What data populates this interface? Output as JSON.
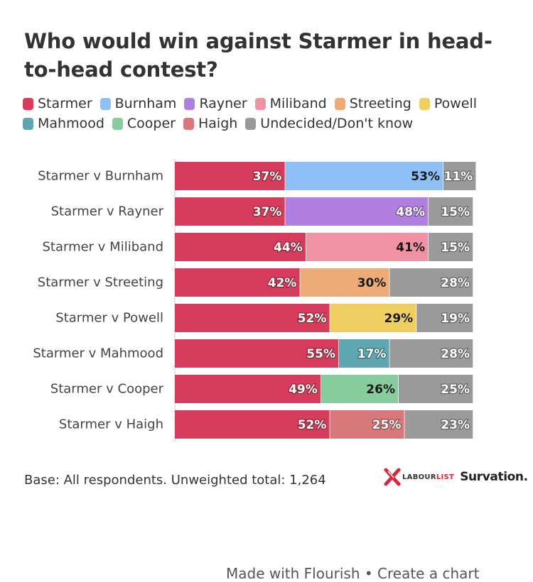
{
  "header": {
    "title": "Who would win against Starmer in head-to-head contest?"
  },
  "legend": [
    {
      "label": "Starmer",
      "color": "#d63c5b"
    },
    {
      "label": "Burnham",
      "color": "#8ec0f7"
    },
    {
      "label": "Rayner",
      "color": "#b07fe0"
    },
    {
      "label": "Miliband",
      "color": "#ef93a4"
    },
    {
      "label": "Streeting",
      "color": "#edab78"
    },
    {
      "label": "Powell",
      "color": "#f0cf62"
    },
    {
      "label": "Mahmood",
      "color": "#5ea6b0"
    },
    {
      "label": "Cooper",
      "color": "#86cc9c"
    },
    {
      "label": "Haigh",
      "color": "#d9787a"
    },
    {
      "label": "Undecided/Don't know",
      "color": "#9a9a9a"
    }
  ],
  "chart_data": {
    "type": "bar",
    "orientation": "horizontal",
    "stacked": true,
    "title": "Who would win against Starmer in head-to-head contest?",
    "categories": [
      "Starmer v Burnham",
      "Starmer v Rayner",
      "Starmer v Miliband",
      "Starmer v Streeting",
      "Starmer v Powell",
      "Starmer v Mahmood",
      "Starmer v Cooper",
      "Starmer v Haigh"
    ],
    "rows": [
      {
        "starmer": 37,
        "opponent": "Burnham",
        "opponent_value": 53,
        "undecided": 11
      },
      {
        "starmer": 37,
        "opponent": "Rayner",
        "opponent_value": 48,
        "undecided": 15
      },
      {
        "starmer": 44,
        "opponent": "Miliband",
        "opponent_value": 41,
        "undecided": 15
      },
      {
        "starmer": 42,
        "opponent": "Streeting",
        "opponent_value": 30,
        "undecided": 28
      },
      {
        "starmer": 52,
        "opponent": "Powell",
        "opponent_value": 29,
        "undecided": 19
      },
      {
        "starmer": 55,
        "opponent": "Mahmood",
        "opponent_value": 17,
        "undecided": 28
      },
      {
        "starmer": 49,
        "opponent": "Cooper",
        "opponent_value": 26,
        "undecided": 25
      },
      {
        "starmer": 52,
        "opponent": "Haigh",
        "opponent_value": 25,
        "undecided": 23
      }
    ],
    "value_suffix": "%",
    "colors": {
      "Starmer": "#d63c5b",
      "Burnham": "#8ec0f7",
      "Rayner": "#b07fe0",
      "Miliband": "#ef93a4",
      "Streeting": "#edab78",
      "Powell": "#f0cf62",
      "Mahmood": "#5ea6b0",
      "Cooper": "#86cc9c",
      "Haigh": "#d9787a",
      "Undecided": "#9a9a9a"
    },
    "dark_label_opponents": [
      "Burnham",
      "Miliband",
      "Streeting",
      "Powell",
      "Cooper"
    ],
    "grid": false,
    "legend_position": "top"
  },
  "footer": {
    "base": "Base: All respondents. Unweighted total: 1,264",
    "logo_labour": "LABOUR",
    "logo_list": "LIST",
    "logo_survation": "Survation.",
    "cutoff_text": "Made with Flourish • Create a chart"
  }
}
